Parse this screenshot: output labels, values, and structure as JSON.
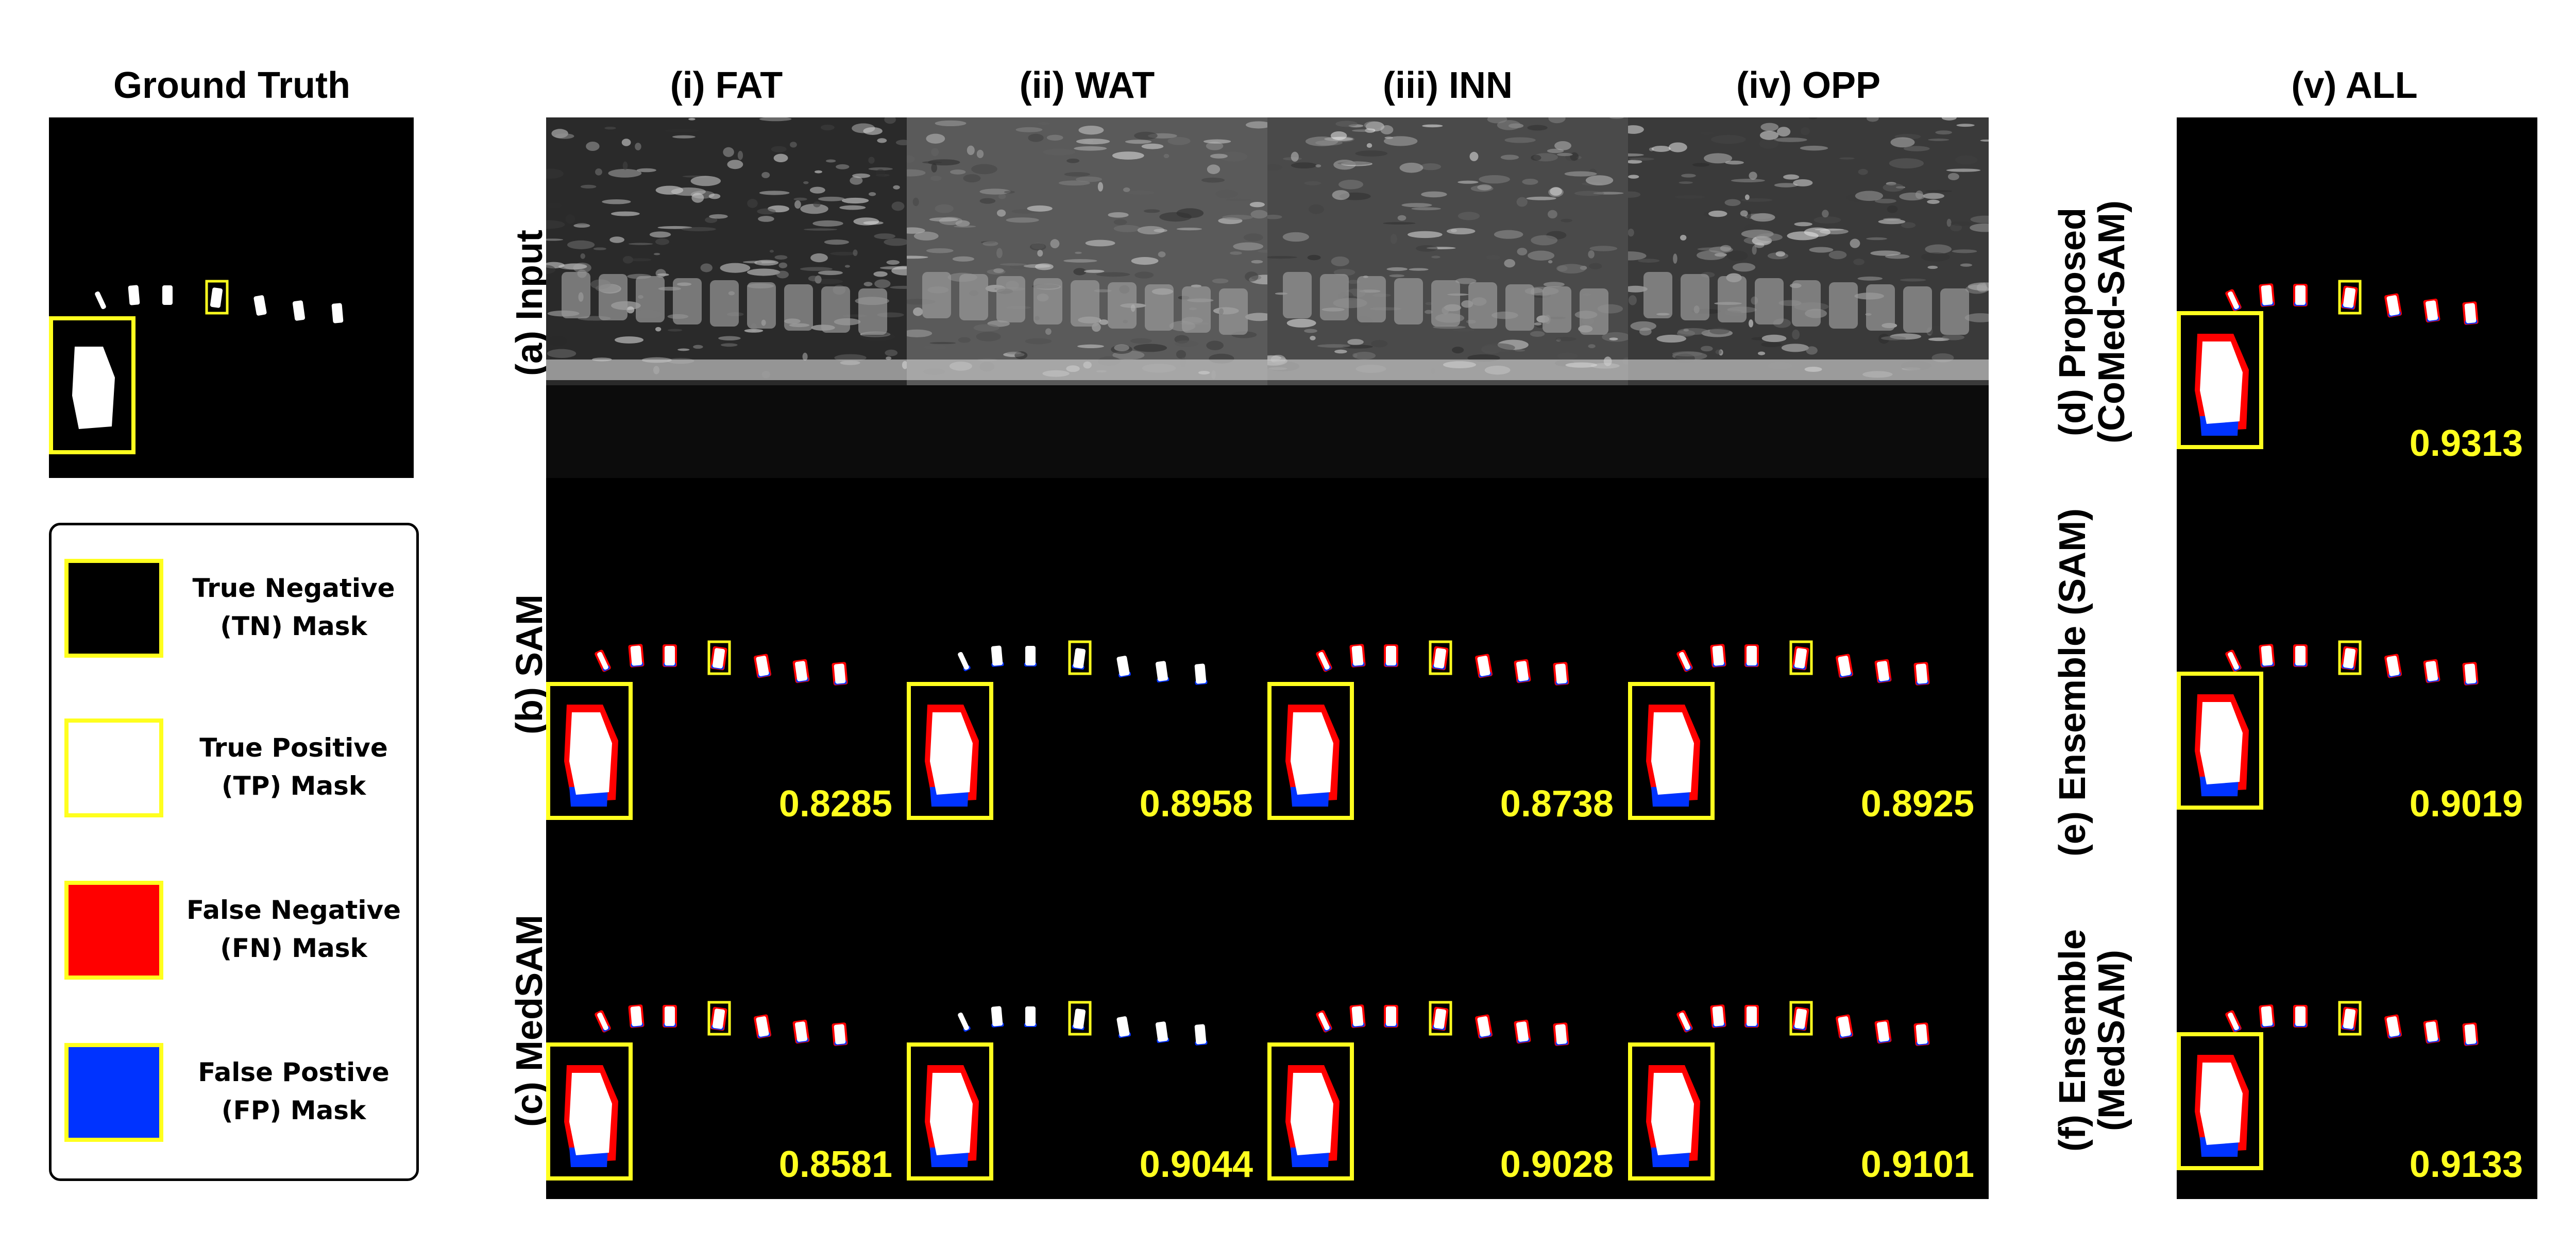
{
  "ground_truth_title": "Ground Truth",
  "column_titles": [
    "(i) FAT",
    "(ii) WAT",
    "(iii) INN",
    "(iv) OPP",
    "(v) ALL"
  ],
  "row_labels": {
    "a": "(a) Input",
    "b": "(b) SAM",
    "c": "(c) MedSAM",
    "d": "(d) Proposed (CoMed-SAM)",
    "e": "(e) Ensemble (SAM)",
    "f": "(f) Ensemble (MedSAM)"
  },
  "scores": {
    "sam": [
      "0.8285",
      "0.8958",
      "0.8738",
      "0.8925"
    ],
    "medsam": [
      "0.8581",
      "0.9044",
      "0.9028",
      "0.9101"
    ],
    "proposed": "0.9313",
    "ensemble_sam": "0.9019",
    "ensemble_medsam": "0.9133"
  },
  "legend": [
    {
      "line1": "True Negative",
      "line2": "(TN) Mask",
      "color": "#000000"
    },
    {
      "line1": "True Positive",
      "line2": "(TP) Mask",
      "color": "#ffffff"
    },
    {
      "line1": "False Negative",
      "line2": "(FN) Mask",
      "color": "#ff0000"
    },
    {
      "line1": "False Postive",
      "line2": "(FP) Mask",
      "color": "#0033ff"
    }
  ],
  "colors": {
    "highlight": "#ffff1e",
    "tp": "#ffffff",
    "fn": "#ff0000",
    "fp": "#0033ff",
    "background": "#000000"
  }
}
